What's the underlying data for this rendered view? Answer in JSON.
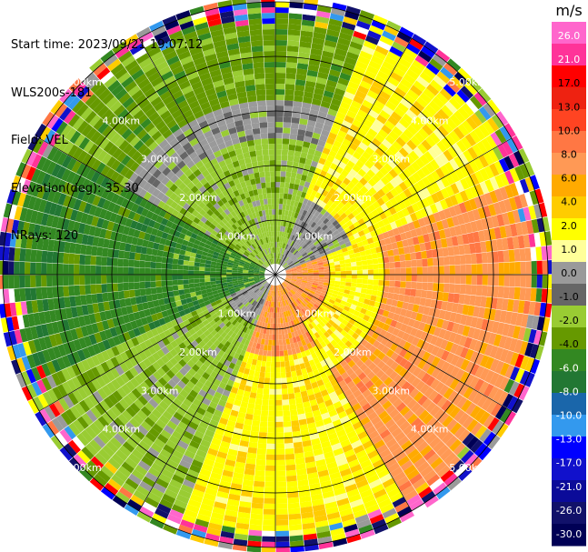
{
  "info": {
    "start_time": "Start time: 2023/09/21 19:07:12",
    "instrument": "WLS200s-181",
    "field": "Field: VEL",
    "elevation": "Elevation(deg): 35.30",
    "nrays": "NRays: 120"
  },
  "colorbar": {
    "unit": "m/s",
    "ticks": [
      "26.0",
      "21.0",
      "17.0",
      "13.0",
      "10.0",
      "8.0",
      "6.0",
      "4.0",
      "2.0",
      "1.0",
      "0.0",
      "-1.0",
      "-2.0",
      "-4.0",
      "-6.0",
      "-8.0",
      "-10.0",
      "-13.0",
      "-17.0",
      "-21.0",
      "-26.0",
      "-30.0"
    ],
    "colors": [
      "#ff66cc",
      "#ff3399",
      "#ff0000",
      "#ee2211",
      "#ff4422",
      "#ff7744",
      "#ff9955",
      "#ffaa00",
      "#ffcc00",
      "#ffff00",
      "#ffff99",
      "#9a9a9a",
      "#666666",
      "#99cc33",
      "#669900",
      "#338822",
      "#227733",
      "#1a66aa",
      "#3399ee",
      "#0000ff",
      "#1111cc",
      "#0b0b99",
      "#11116a",
      "#000055"
    ]
  },
  "chart_data": {
    "type": "heatmap",
    "projection": "polar (PPI)",
    "field": "VEL",
    "units": "m/s",
    "elevation_deg": 35.3,
    "nrays": 120,
    "range_rings_km": [
      1.0,
      2.0,
      3.0,
      4.0,
      5.0
    ],
    "ring_labels": [
      "1.00km",
      "2.00km",
      "3.00km",
      "4.00km",
      "5.00km"
    ],
    "radial_lines_deg": [
      0,
      30,
      60,
      90,
      120,
      150,
      180,
      210,
      240,
      270,
      300,
      330
    ],
    "pattern": {
      "description_sectors": [
        {
          "azimuth_from": 0,
          "azimuth_to": 60,
          "dominant_velocity": "0.0 to 2.0"
        },
        {
          "azimuth_from": 60,
          "azimuth_to": 150,
          "dominant_velocity": "2.0 to 10.0"
        },
        {
          "azimuth_from": 150,
          "azimuth_to": 200,
          "dominant_velocity": "1.0 to 6.0"
        },
        {
          "azimuth_from": 200,
          "azimuth_to": 300,
          "dominant_velocity": "-2.0 to -8.0"
        },
        {
          "azimuth_from": 300,
          "azimuth_to": 360,
          "dominant_velocity": "-1.0 to -4.0"
        }
      ],
      "noise_beyond_km": 4.6
    }
  }
}
